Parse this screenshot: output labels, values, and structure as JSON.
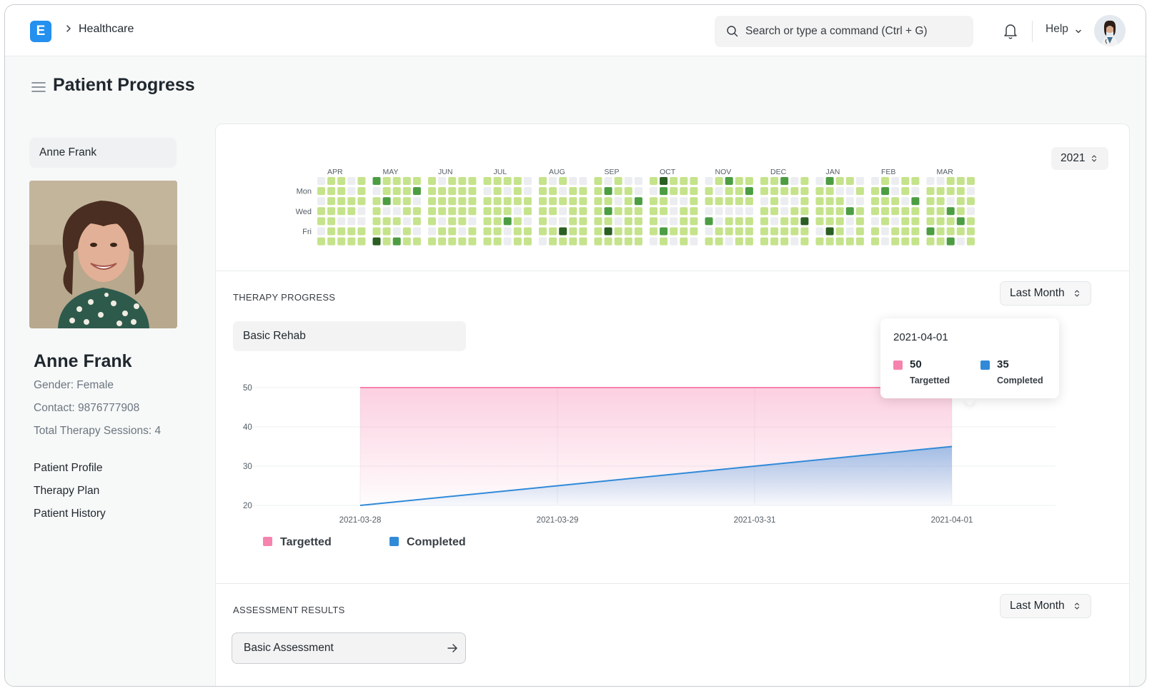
{
  "navbar": {
    "logo_letter": "E",
    "breadcrumb": "Healthcare",
    "search_placeholder": "Search or type a command (Ctrl + G)",
    "help_label": "Help"
  },
  "page": {
    "title": "Patient Progress"
  },
  "sidebar": {
    "patient_select": "Anne Frank",
    "patient_name": "Anne Frank",
    "gender": "Gender: Female",
    "contact": "Contact: 9876777908",
    "sessions": "Total Therapy Sessions: 4",
    "links": [
      "Patient Profile",
      "Therapy Plan",
      "Patient History"
    ]
  },
  "heatmap": {
    "year": "2021",
    "months": [
      "APR",
      "MAY",
      "JUN",
      "JUL",
      "AUG",
      "SEP",
      "OCT",
      "NOV",
      "DEC",
      "JAN",
      "FEB",
      "MAR"
    ],
    "day_labels": [
      "Mon",
      "Wed",
      "Fri"
    ],
    "colors": {
      "empty": "#ebedf0",
      "light": "#c5e38b",
      "medium": "#8fcb68",
      "dark": "#4c9d42",
      "darkest": "#2a5e23"
    }
  },
  "therapy_progress": {
    "section_title": "THERAPY PROGRESS",
    "period": "Last Month",
    "program": "Basic Rehab",
    "tooltip": {
      "title": "2021-04-01",
      "items": [
        {
          "value": "50",
          "name": "Targetted"
        },
        {
          "value": "35",
          "name": "Completed"
        }
      ]
    }
  },
  "chart_data": {
    "type": "area",
    "categories": [
      "2021-03-28",
      "2021-03-29",
      "2021-03-31",
      "2021-04-01"
    ],
    "series": [
      {
        "name": "Targetted",
        "values": [
          50,
          50,
          50,
          50
        ],
        "color": "#f683ae"
      },
      {
        "name": "Completed",
        "values": [
          20,
          25,
          30,
          35
        ],
        "color": "#318ad8"
      }
    ],
    "yticks": [
      20,
      30,
      40,
      50
    ],
    "ylim": [
      20,
      50
    ],
    "legend": "bottom-left"
  },
  "assessment": {
    "section_title": "ASSESSMENT RESULTS",
    "period": "Last Month",
    "assessment_select": "Basic Assessment"
  }
}
